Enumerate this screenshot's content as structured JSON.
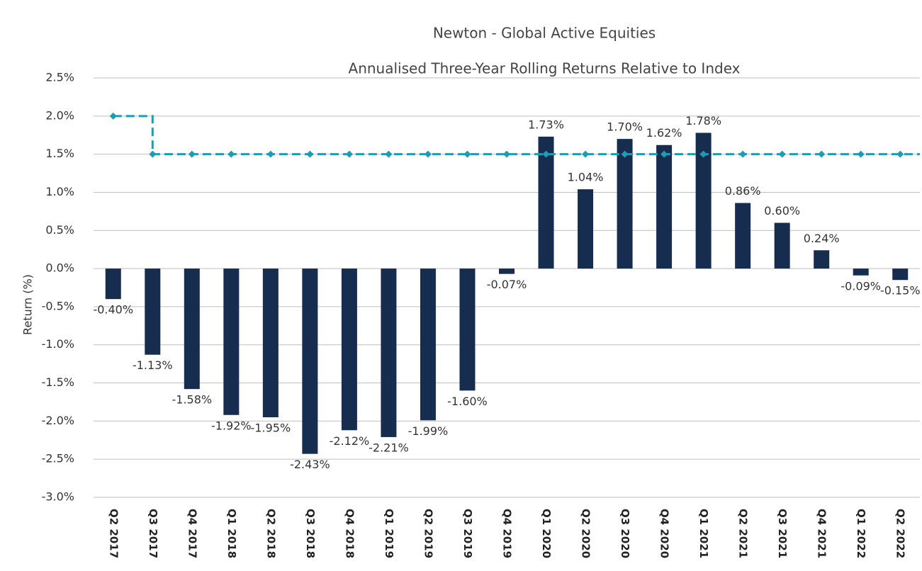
{
  "chart_data": {
    "type": "bar",
    "title": "Newton - Global Active Equities",
    "subtitle": "Annualised Three-Year Rolling Returns Relative to Index",
    "y_label": "Return (%)",
    "categories": [
      "Q2 2017",
      "Q3 2017",
      "Q4 2017",
      "Q1 2018",
      "Q2 2018",
      "Q3 2018",
      "Q4 2018",
      "Q1 2019",
      "Q2 2019",
      "Q3 2019",
      "Q4 2019",
      "Q1 2020",
      "Q2 2020",
      "Q3 2020",
      "Q4 2020",
      "Q1 2021",
      "Q2 2021",
      "Q3 2021",
      "Q4 2021",
      "Q1 2022",
      "Q2 2022"
    ],
    "series": [
      {
        "type": "bar",
        "color": "#162d50",
        "values": [
          -0.4,
          -1.13,
          -1.58,
          -1.92,
          -1.95,
          -2.43,
          -2.12,
          -2.21,
          -1.99,
          -1.6,
          -0.07,
          1.73,
          1.04,
          1.7,
          1.62,
          1.78,
          0.86,
          0.6,
          0.24,
          -0.09,
          -0.15
        ],
        "value_labels": [
          "-0.40%",
          "-1.13%",
          "-1.58%",
          "-1.92%",
          "-1.95%",
          "-2.43%",
          "-2.12%",
          "-2.21%",
          "-1.99%",
          "-1.60%",
          "-0.07%",
          "1.73%",
          "1.04%",
          "1.70%",
          "1.62%",
          "1.78%",
          "0.86%",
          "0.60%",
          "0.24%",
          "-0.09%",
          "-0.15%"
        ]
      },
      {
        "type": "line",
        "color": "#1a9db5",
        "dashed": true,
        "step": true,
        "values": [
          2.0,
          1.5,
          1.5,
          1.5,
          1.5,
          1.5,
          1.5,
          1.5,
          1.5,
          1.5,
          1.5,
          1.5,
          1.5,
          1.5,
          1.5,
          1.5,
          1.5,
          1.5,
          1.5,
          1.5,
          1.5
        ]
      }
    ],
    "ylim": [
      -3.0,
      2.5
    ],
    "yticks": [
      {
        "value": -3.0,
        "label": "-3.0%"
      },
      {
        "value": -2.5,
        "label": "-2.5%"
      },
      {
        "value": -2.0,
        "label": "-2.0%"
      },
      {
        "value": -1.5,
        "label": "-1.5%"
      },
      {
        "value": -1.0,
        "label": "-1.0%"
      },
      {
        "value": -0.5,
        "label": "-0.5%"
      },
      {
        "value": 0.0,
        "label": "0.0%"
      },
      {
        "value": 0.5,
        "label": "0.5%"
      },
      {
        "value": 1.0,
        "label": "1.0%"
      },
      {
        "value": 1.5,
        "label": "1.5%"
      },
      {
        "value": 2.0,
        "label": "2.0%"
      },
      {
        "value": 2.5,
        "label": "2.5%"
      }
    ],
    "grid": true
  }
}
